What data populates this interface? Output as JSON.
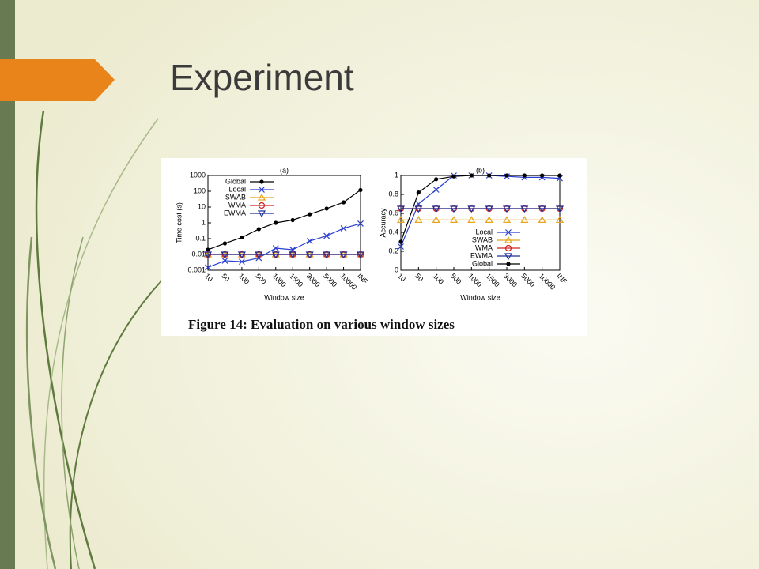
{
  "slide_title": "Experiment",
  "caption": "Figure 14: Evaluation on various window sizes",
  "chart_data": [
    {
      "type": "line",
      "title": "(a)",
      "x_label": "Window size",
      "y_label": "Time cost (s)",
      "categories": [
        "10",
        "50",
        "100",
        "500",
        "1000",
        "1500",
        "3000",
        "5000",
        "10000",
        "INF"
      ],
      "yscale": "log",
      "ylim": [
        0.001,
        1000
      ],
      "yticks": [
        0.001,
        0.01,
        0.1,
        1,
        10,
        100,
        1000
      ],
      "legend": "upper left",
      "series": [
        {
          "name": "Global",
          "color": "#000000",
          "marker": "dot",
          "values": [
            0.02,
            0.05,
            0.12,
            0.4,
            1,
            1.5,
            3.5,
            8,
            20,
            120
          ]
        },
        {
          "name": "Local",
          "color": "#2a3fd0",
          "marker": "x",
          "values": [
            0.0015,
            0.004,
            0.0035,
            0.006,
            0.025,
            0.02,
            0.07,
            0.15,
            0.45,
            0.9
          ]
        },
        {
          "name": "SWAB",
          "color": "#e8a41a",
          "marker": "triangle",
          "values": [
            0.01,
            0.01,
            0.01,
            0.01,
            0.01,
            0.01,
            0.01,
            0.01,
            0.01,
            0.01
          ]
        },
        {
          "name": "WMA",
          "color": "#d42020",
          "marker": "circle",
          "values": [
            0.01,
            0.01,
            0.01,
            0.01,
            0.01,
            0.01,
            0.01,
            0.01,
            0.01,
            0.01
          ]
        },
        {
          "name": "EWMA",
          "color": "#1f2f9a",
          "marker": "triangle-down",
          "values": [
            0.01,
            0.01,
            0.01,
            0.01,
            0.01,
            0.01,
            0.01,
            0.01,
            0.01,
            0.01
          ]
        }
      ]
    },
    {
      "type": "line",
      "title": "(b)",
      "x_label": "Window size",
      "y_label": "Accuracy",
      "categories": [
        "10",
        "50",
        "100",
        "500",
        "1000",
        "1500",
        "3000",
        "5000",
        "10000",
        "INF"
      ],
      "ylim": [
        0,
        1
      ],
      "yticks": [
        0,
        0.2,
        0.4,
        0.6,
        0.8,
        1
      ],
      "legend": "lower right",
      "series": [
        {
          "name": "Local",
          "color": "#2a3fd0",
          "marker": "x",
          "values": [
            0.25,
            0.7,
            0.85,
            1,
            1,
            1,
            0.99,
            0.98,
            0.98,
            0.97
          ]
        },
        {
          "name": "SWAB",
          "color": "#e8a41a",
          "marker": "triangle",
          "values": [
            0.53,
            0.53,
            0.53,
            0.53,
            0.53,
            0.53,
            0.53,
            0.53,
            0.53,
            0.53
          ]
        },
        {
          "name": "WMA",
          "color": "#d42020",
          "marker": "circle",
          "values": [
            0.65,
            0.65,
            0.65,
            0.65,
            0.65,
            0.65,
            0.65,
            0.65,
            0.65,
            0.65
          ]
        },
        {
          "name": "EWMA",
          "color": "#1f2f9a",
          "marker": "triangle-down",
          "values": [
            0.65,
            0.65,
            0.65,
            0.65,
            0.65,
            0.65,
            0.65,
            0.65,
            0.65,
            0.65
          ]
        },
        {
          "name": "Global",
          "color": "#000000",
          "marker": "dot",
          "values": [
            0.3,
            0.82,
            0.96,
            0.99,
            1,
            1,
            1,
            1,
            1,
            1
          ]
        }
      ]
    }
  ]
}
